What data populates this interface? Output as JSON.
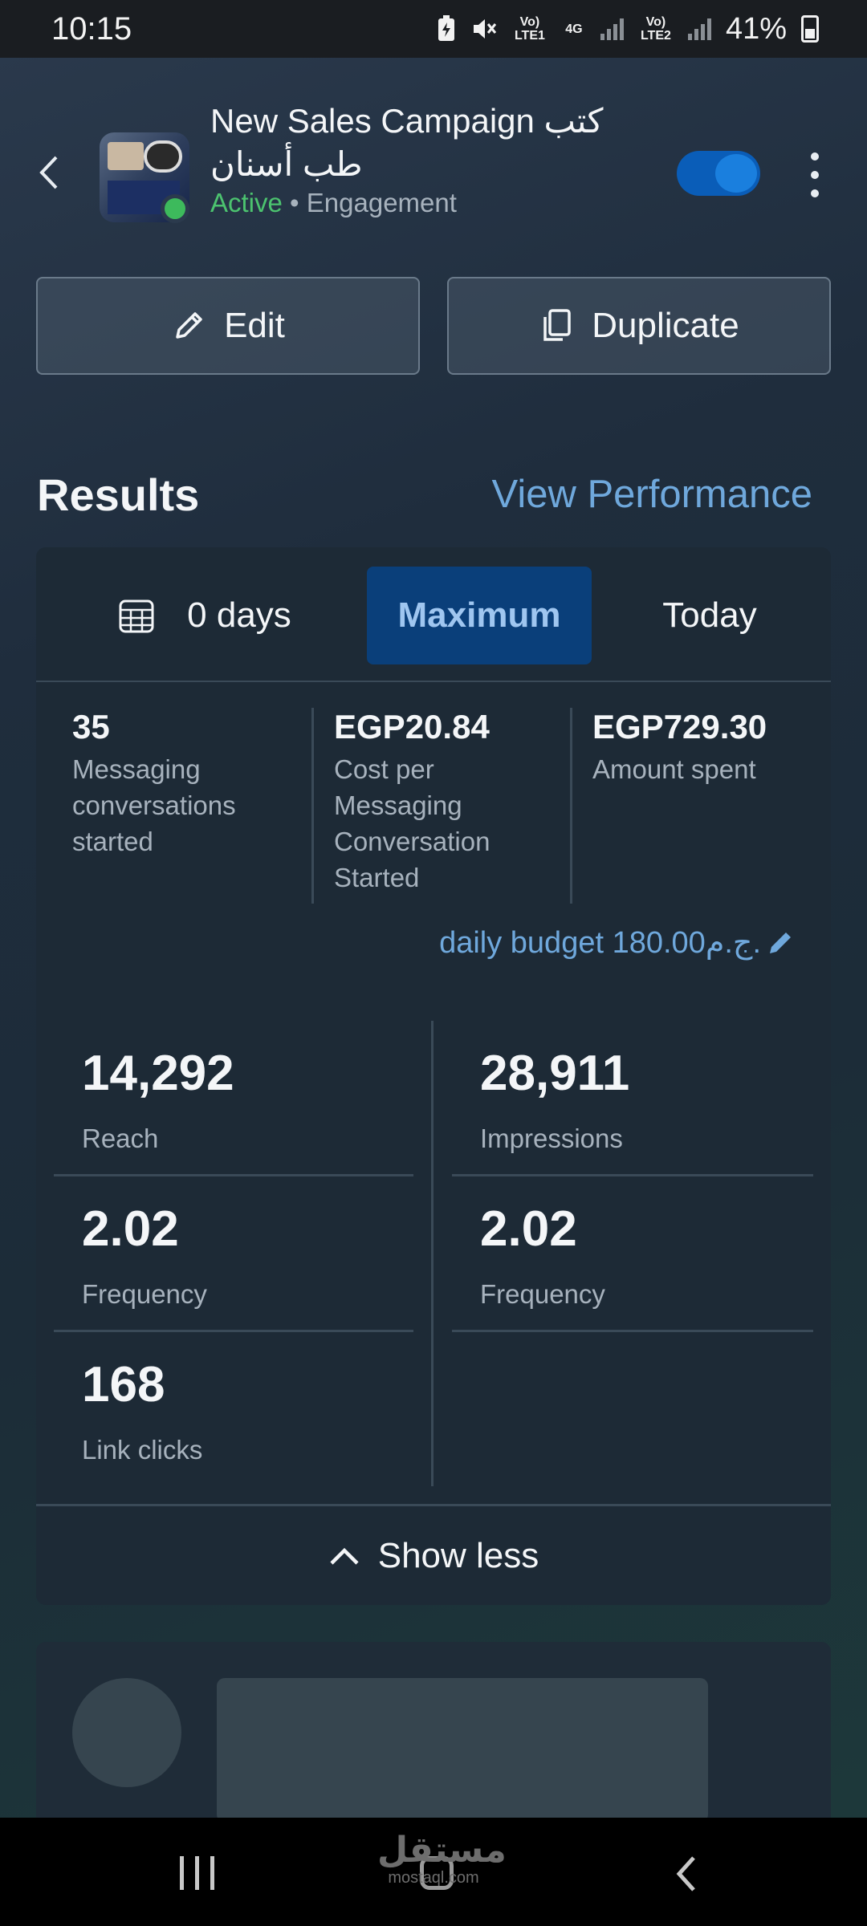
{
  "status_bar": {
    "time": "10:15",
    "sim1": "Vo) LTE1",
    "net": "4G",
    "sim2": "Vo) LTE2",
    "battery": "41%",
    "icons": [
      "battery-saver-icon",
      "mute-icon",
      "signal-icon",
      "battery-icon"
    ]
  },
  "header": {
    "campaign_title": "New Sales Campaign كتب طب أسنان",
    "status": "Active",
    "separator": "•",
    "objective": "Engagement",
    "toggle_on": true,
    "accent_color": "#0a5db8"
  },
  "actions": {
    "edit_label": "Edit",
    "duplicate_label": "Duplicate"
  },
  "results": {
    "title": "Results",
    "view_performance": "View Performance",
    "tabs": {
      "days_label": "0 days",
      "maximum_label": "Maximum",
      "today_label": "Today",
      "selected": "Maximum"
    },
    "top_metrics": [
      {
        "value": "35",
        "label": "Messaging conversations started"
      },
      {
        "value": "EGP20.84",
        "label": "Cost per Messaging Conversation Started"
      },
      {
        "value": "EGP729.30",
        "label": "Amount spent"
      }
    ],
    "daily_budget": "daily budget 180.00ج.م.",
    "metrics": {
      "reach": {
        "value": "14,292",
        "label": "Reach"
      },
      "impressions": {
        "value": "28,911",
        "label": "Impressions"
      },
      "frequency_left": {
        "value": "2.02",
        "label": "Frequency"
      },
      "frequency_right": {
        "value": "2.02",
        "label": "Frequency"
      },
      "link_clicks": {
        "value": "168",
        "label": "Link clicks"
      }
    },
    "show_less": "Show less"
  },
  "watermark": {
    "arabic": "مستقل",
    "latin": "mostaql.com"
  }
}
